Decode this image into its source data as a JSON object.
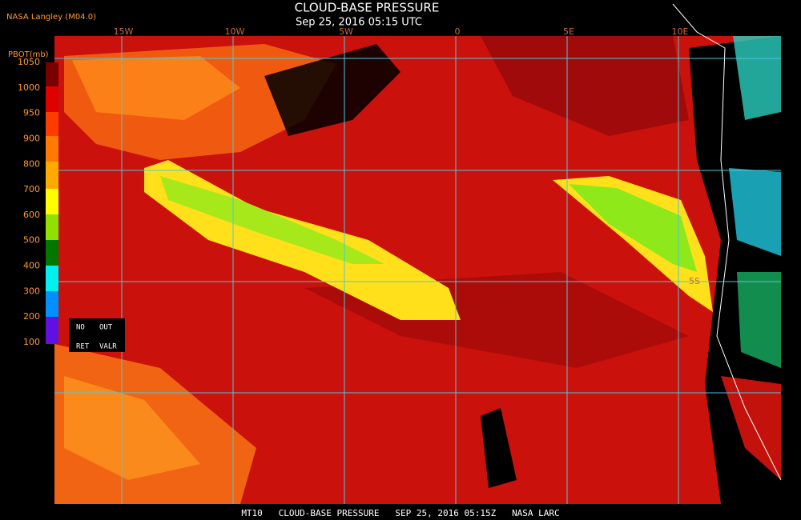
{
  "header": {
    "source": "NASA Langley (M04.0)",
    "title": "CLOUD-BASE PRESSURE",
    "timestamp": "Sep 25, 2016 05:15 UTC"
  },
  "map": {
    "longitude_labels": [
      "15W",
      "10W",
      "5W",
      "0",
      "5E",
      "10E"
    ],
    "latitude_labels": [
      "5S"
    ]
  },
  "legend": {
    "label": "PBOT(mb)",
    "ticks": [
      1050,
      1000,
      950,
      900,
      800,
      700,
      600,
      500,
      400,
      300,
      200,
      100
    ],
    "notes": [
      "NO",
      "OUT",
      "RET",
      "VALR"
    ]
  },
  "footer": "MT10   CLOUD-BASE PRESSURE   SEP 25, 2016 05:15Z   NASA LARC"
}
